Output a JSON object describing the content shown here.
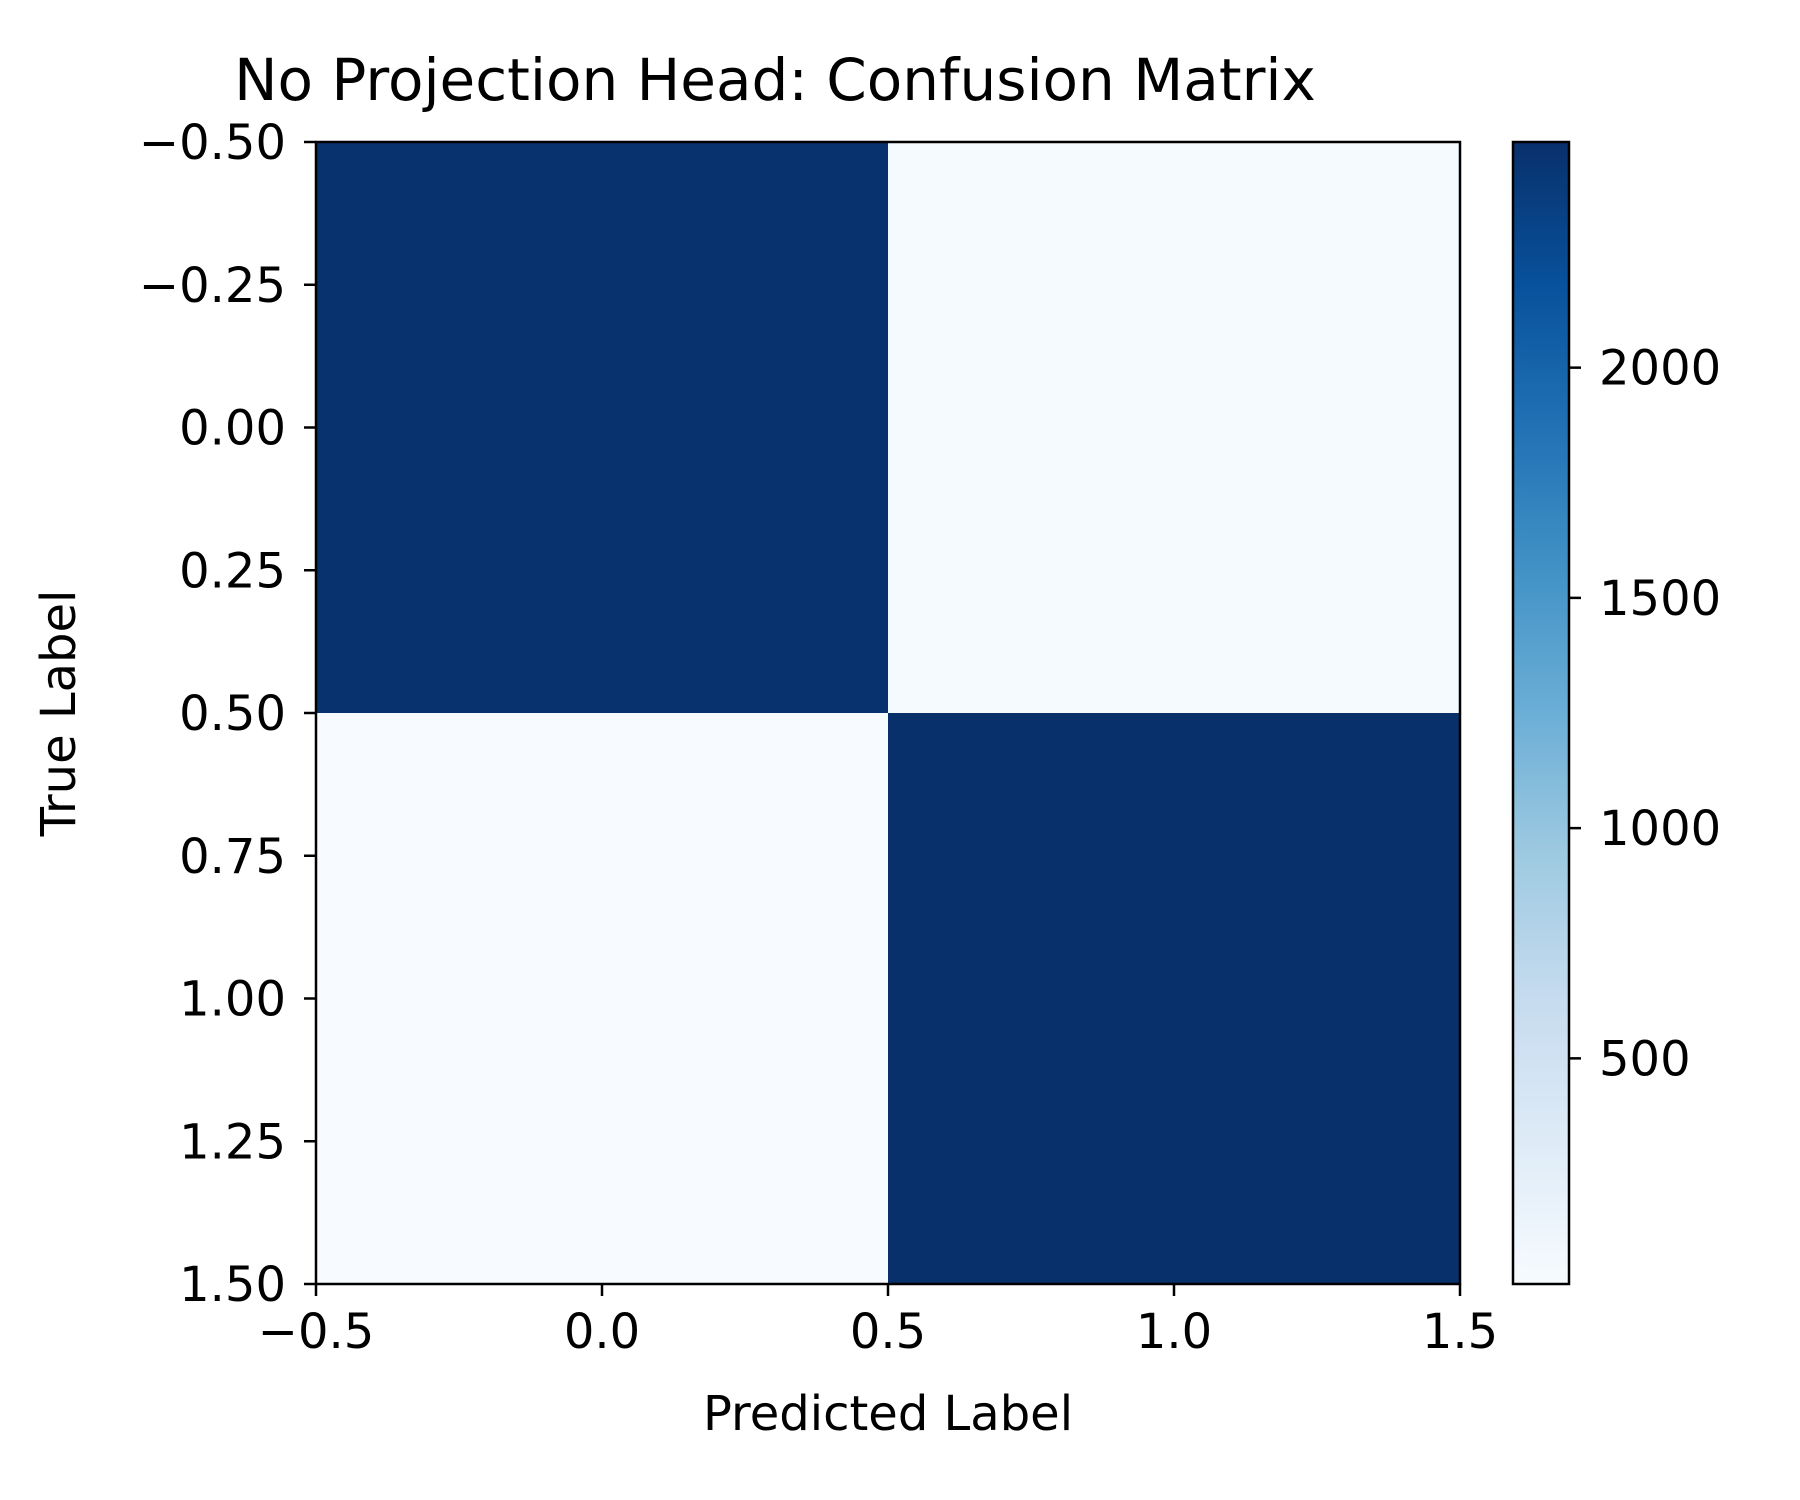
{
  "chart_data": {
    "type": "heatmap",
    "title": "No Projection Head: Confusion Matrix",
    "xlabel": "Predicted Label",
    "ylabel": "True Label",
    "xlim": [
      -0.5,
      1.5
    ],
    "ylim": [
      1.5,
      -0.5
    ],
    "x_ticks": [
      -0.5,
      0.0,
      0.5,
      1.0,
      1.5
    ],
    "x_tick_labels": [
      "−0.5",
      "0.0",
      "0.5",
      "1.0",
      "1.5"
    ],
    "y_ticks": [
      -0.5,
      -0.25,
      0.0,
      0.25,
      0.5,
      0.75,
      1.0,
      1.25,
      1.5
    ],
    "y_tick_labels": [
      "−0.50",
      "−0.25",
      "0.00",
      "0.25",
      "0.50",
      "0.75",
      "1.00",
      "1.25",
      "1.50"
    ],
    "rows": [
      0,
      1
    ],
    "cols": [
      0,
      1
    ],
    "matrix": [
      [
        2470,
        30
      ],
      [
        10,
        2490
      ]
    ],
    "colormap": "Blues",
    "colorbar": {
      "range": [
        10,
        2490
      ],
      "ticks": [
        500,
        1000,
        1500,
        2000
      ],
      "tick_labels": [
        "500",
        "1000",
        "1500",
        "2000"
      ]
    }
  }
}
